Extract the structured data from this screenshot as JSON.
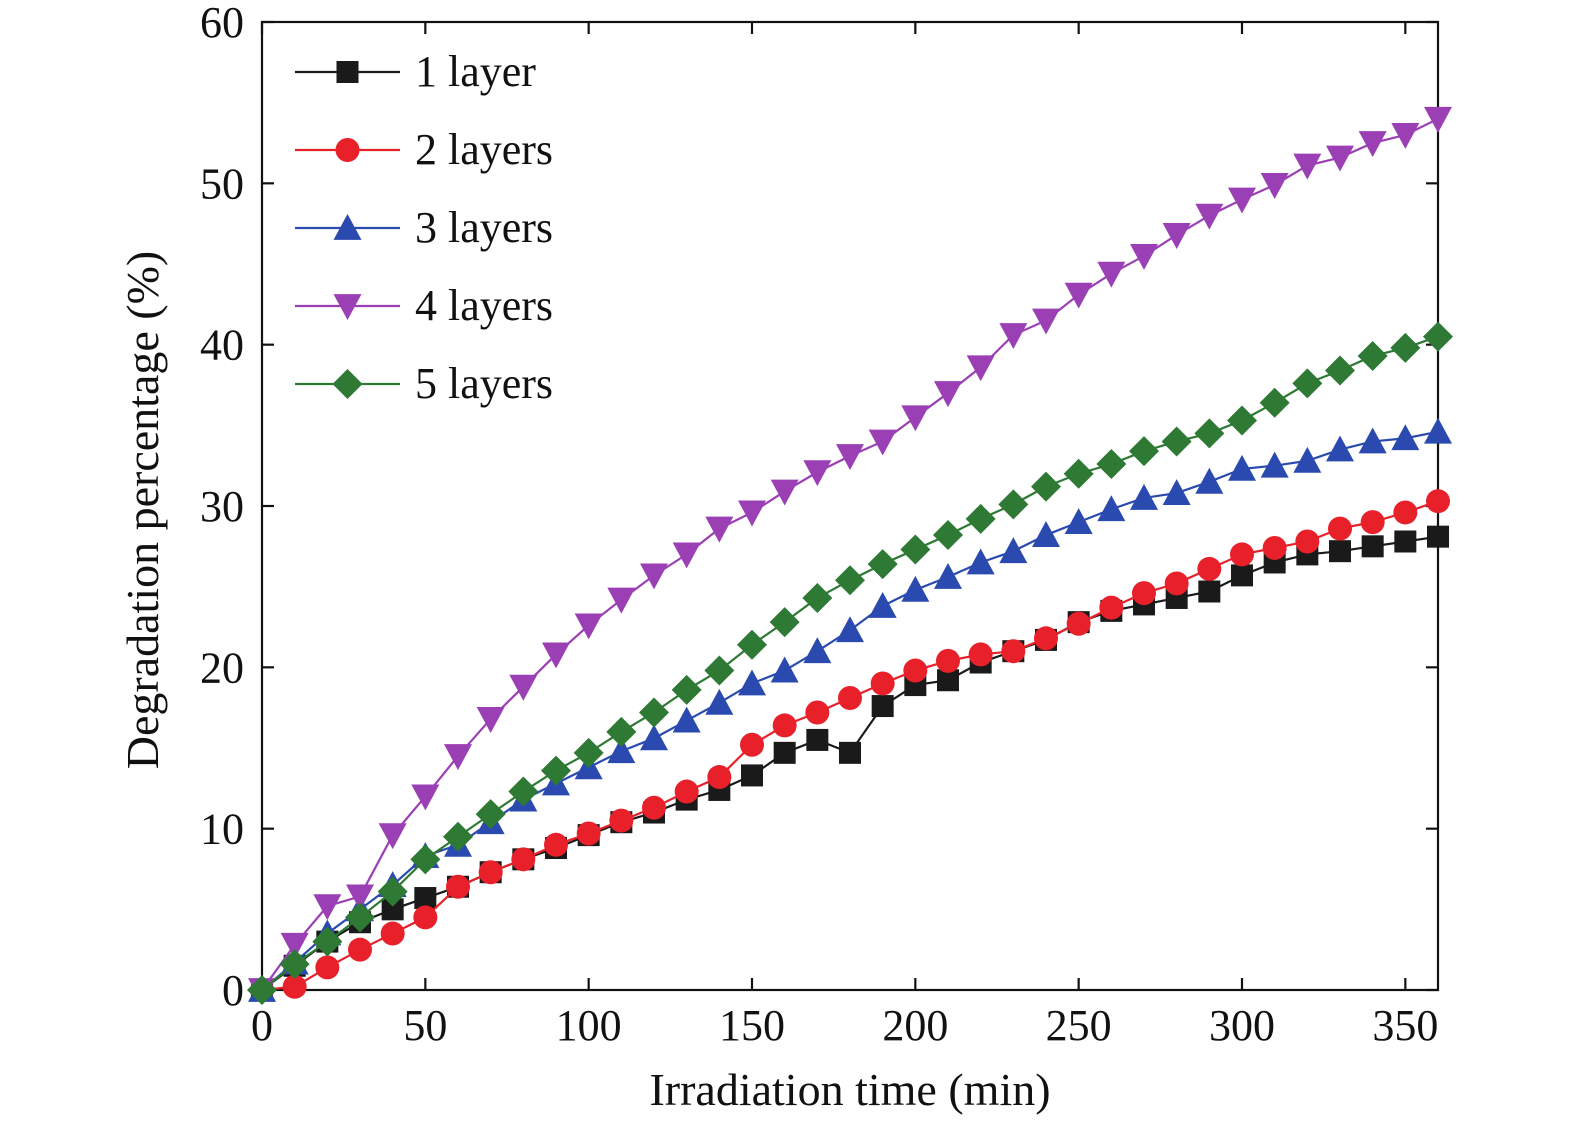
{
  "chart_data": {
    "type": "line",
    "xlabel": "Irradiation time (min)",
    "ylabel": "Degradation percentage (%)",
    "xlim": [
      0,
      360
    ],
    "ylim": [
      0,
      60
    ],
    "xticks": [
      0,
      50,
      100,
      150,
      200,
      250,
      300,
      350
    ],
    "yticks": [
      0,
      10,
      20,
      30,
      40,
      50,
      60
    ],
    "grid": false,
    "legend_position": "top-left",
    "x": [
      0,
      10,
      20,
      30,
      40,
      50,
      60,
      70,
      80,
      90,
      100,
      110,
      120,
      130,
      140,
      150,
      160,
      170,
      180,
      190,
      200,
      210,
      220,
      230,
      240,
      250,
      260,
      270,
      280,
      290,
      300,
      310,
      320,
      330,
      340,
      350,
      360
    ],
    "series": [
      {
        "name": "1 layer",
        "color": "#1a1a1a",
        "marker": "square",
        "values": [
          0,
          1.5,
          3.0,
          4.2,
          5.0,
          5.7,
          6.4,
          7.3,
          8.1,
          8.8,
          9.6,
          10.4,
          11.0,
          11.8,
          12.4,
          13.3,
          14.7,
          15.5,
          14.7,
          17.6,
          18.9,
          19.2,
          20.3,
          21.0,
          21.7,
          22.8,
          23.5,
          23.9,
          24.3,
          24.7,
          25.7,
          26.5,
          27.0,
          27.2,
          27.5,
          27.8,
          28.1
        ]
      },
      {
        "name": "2 layers",
        "color": "#e8202a",
        "marker": "circle",
        "values": [
          0,
          0.2,
          1.4,
          2.5,
          3.5,
          4.5,
          6.4,
          7.3,
          8.1,
          9.0,
          9.7,
          10.5,
          11.3,
          12.3,
          13.2,
          15.2,
          16.4,
          17.2,
          18.1,
          19.0,
          19.8,
          20.4,
          20.8,
          21.0,
          21.8,
          22.7,
          23.7,
          24.6,
          25.2,
          26.1,
          27.0,
          27.4,
          27.8,
          28.6,
          29.0,
          29.6,
          30.3
        ]
      },
      {
        "name": "3 layers",
        "color": "#2a4ab0",
        "marker": "triangle-up",
        "values": [
          0,
          1.7,
          3.5,
          5.0,
          6.5,
          8.3,
          9.0,
          10.4,
          11.8,
          12.8,
          13.8,
          14.8,
          15.6,
          16.7,
          17.8,
          19.0,
          19.8,
          21.0,
          22.3,
          23.8,
          24.8,
          25.6,
          26.5,
          27.2,
          28.2,
          29.0,
          29.8,
          30.5,
          30.8,
          31.5,
          32.3,
          32.5,
          32.8,
          33.5,
          34.0,
          34.2,
          34.6
        ]
      },
      {
        "name": "4 layers",
        "color": "#9b3fb5",
        "marker": "triangle-down",
        "values": [
          0,
          2.8,
          5.2,
          5.8,
          9.6,
          12.0,
          14.5,
          16.8,
          18.8,
          20.8,
          22.6,
          24.2,
          25.7,
          27.0,
          28.6,
          29.6,
          30.9,
          32.1,
          33.1,
          34.0,
          35.5,
          37.0,
          38.6,
          40.6,
          41.5,
          43.1,
          44.4,
          45.5,
          46.8,
          48.0,
          49.0,
          49.9,
          51.1,
          51.6,
          52.5,
          53.0,
          54.0
        ]
      },
      {
        "name": "5 layers",
        "color": "#2e7a35",
        "marker": "diamond",
        "values": [
          0,
          1.6,
          3.0,
          4.5,
          6.1,
          8.1,
          9.5,
          10.9,
          12.3,
          13.6,
          14.7,
          16.0,
          17.2,
          18.6,
          19.8,
          21.4,
          22.8,
          24.3,
          25.4,
          26.4,
          27.3,
          28.2,
          29.2,
          30.1,
          31.2,
          32.0,
          32.6,
          33.4,
          34.0,
          34.5,
          35.3,
          36.4,
          37.6,
          38.4,
          39.3,
          39.8,
          40.5
        ]
      }
    ]
  }
}
